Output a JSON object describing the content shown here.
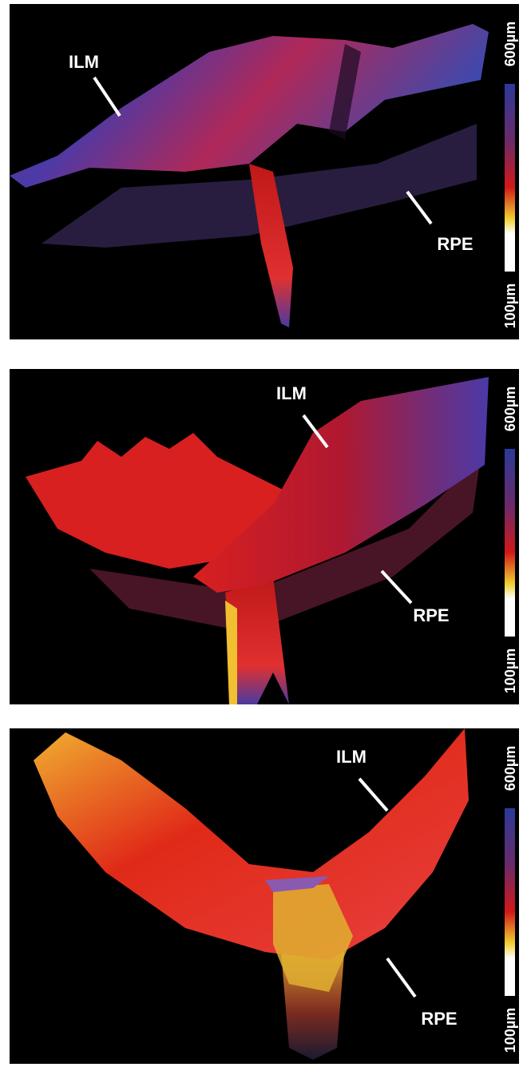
{
  "panels": [
    {
      "labels": {
        "ilm": "ILM",
        "rpe": "RPE",
        "scale_max": "600µm",
        "scale_min": "100µm"
      }
    },
    {
      "labels": {
        "ilm": "ILM",
        "rpe": "RPE",
        "scale_max": "600µm",
        "scale_min": "100µm"
      }
    },
    {
      "labels": {
        "ilm": "ILM",
        "rpe": "RPE",
        "scale_max": "600µm",
        "scale_min": "100µm"
      }
    }
  ]
}
